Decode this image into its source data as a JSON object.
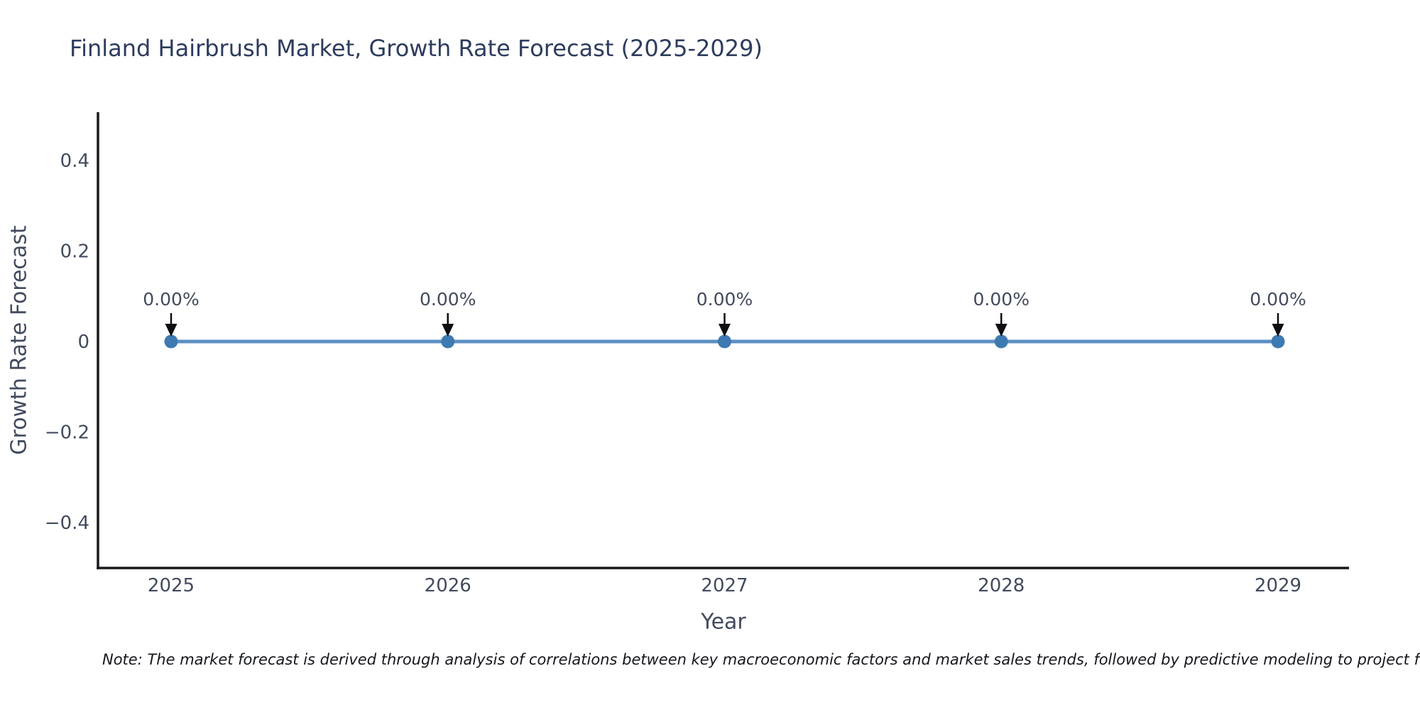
{
  "figure": {
    "note": "Note: The market forecast is derived through analysis of correlations between key macroeconomic factors and market sales trends, followed by predictive modeling to project future sa"
  },
  "chart_data": {
    "type": "line",
    "title": "Finland Hairbrush Market, Growth Rate Forecast (2025-2029)",
    "xlabel": "Year",
    "ylabel": "Growth Rate Forecast",
    "x": [
      2025,
      2026,
      2027,
      2028,
      2029
    ],
    "categories": [
      "2025",
      "2026",
      "2027",
      "2028",
      "2029"
    ],
    "series": [
      {
        "name": "Growth Rate Forecast",
        "values": [
          0,
          0,
          0,
          0,
          0
        ]
      }
    ],
    "values": [
      0,
      0,
      0,
      0,
      0
    ],
    "point_labels": [
      "0.00%",
      "0.00%",
      "0.00%",
      "0.00%",
      "0.00%"
    ],
    "yticks": {
      "values": [
        0.4,
        0.2,
        0,
        -0.2,
        -0.4
      ],
      "labels": [
        "0.4",
        "0.2",
        "0",
        "−0.2",
        "−0.4"
      ]
    },
    "ylim": [
      -0.5,
      0.5
    ],
    "xlim": [
      2024.74,
      2029.26
    ],
    "grid": false,
    "legend": "none",
    "annotation_style": "down-arrow",
    "colors": {
      "line": "#5c8fc2",
      "marker": "#3d7ab2",
      "arrow": "#0d0d12",
      "spine": "#16181d",
      "tick_text": "#424b5e",
      "title_text": "#2d3c5e",
      "note_text": "#15171c"
    }
  }
}
